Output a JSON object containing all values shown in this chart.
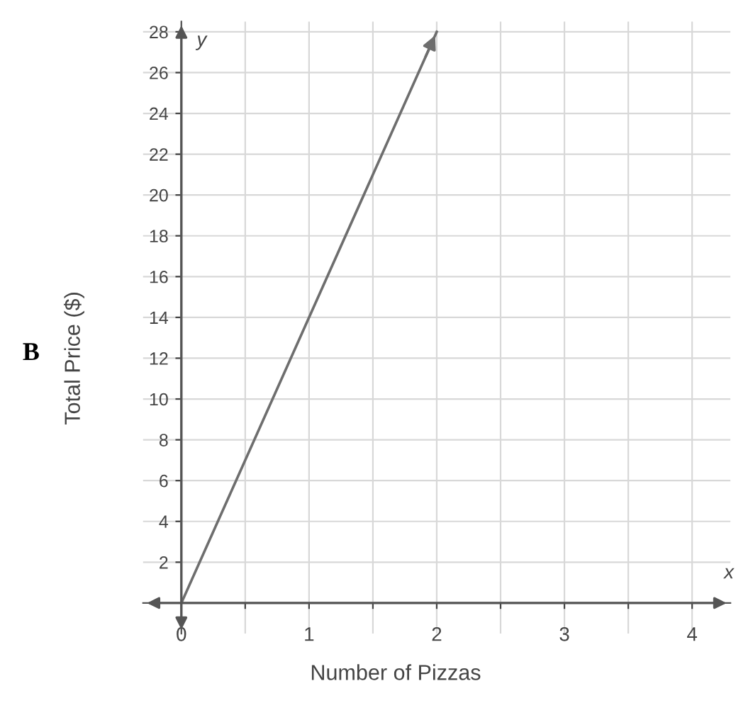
{
  "chart_data": {
    "type": "line",
    "xlabel": "Number of Pizzas",
    "ylabel": "Total Price ($)",
    "annotations": [
      "B",
      "x",
      "y"
    ],
    "x": [
      0,
      2
    ],
    "series": [
      {
        "color": "#6e6e6e",
        "values": [
          0,
          28
        ]
      }
    ],
    "xlim": [
      -0.3,
      4.3
    ],
    "ylim": [
      -1.5,
      28.5
    ],
    "xticks": [
      0,
      {
        "value": 0.5,
        "label": null
      },
      1,
      {
        "value": 1.5,
        "label": null
      },
      2,
      {
        "value": 2.5,
        "label": null
      },
      3,
      {
        "value": 3.5,
        "label": null
      },
      4
    ],
    "yticks": [
      2,
      4,
      6,
      8,
      10,
      12,
      14,
      16,
      18,
      20,
      22,
      24,
      26,
      28
    ],
    "grid": true,
    "marker": "none",
    "line_style": "solid"
  }
}
